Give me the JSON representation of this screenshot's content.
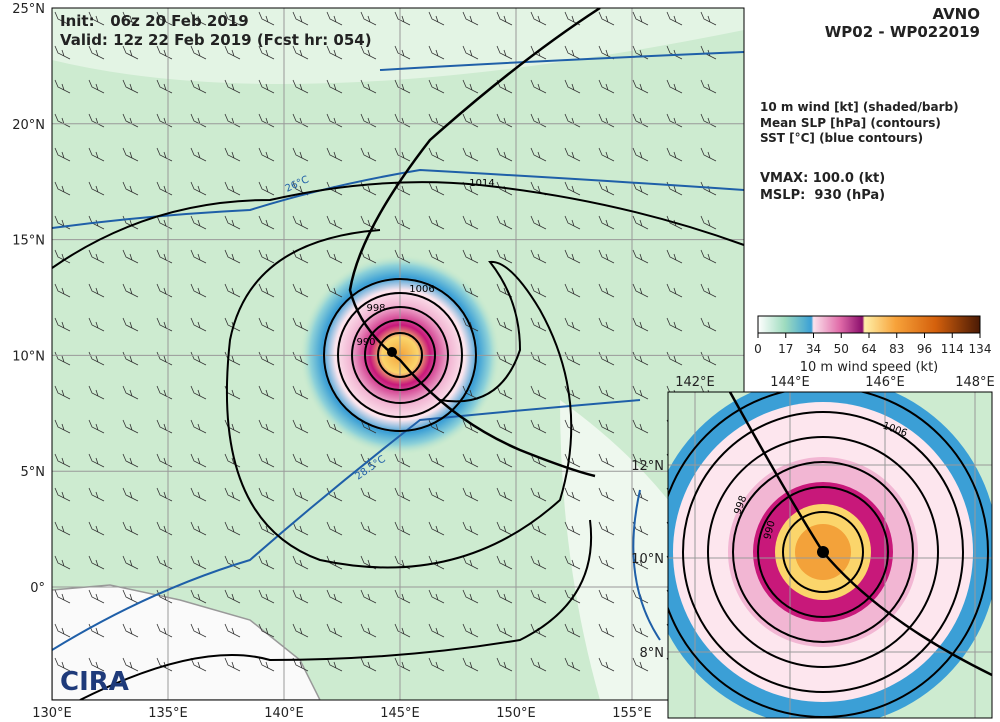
{
  "header": {
    "init": "Init:   06z 20 Feb 2019",
    "valid": "Valid: 12z 22 Feb 2019 (Fcst hr: 054)",
    "model": "AVNO",
    "storm": "WP02 - WP022019"
  },
  "legend": {
    "lines": [
      "10 m wind [kt] (shaded/barb)",
      "Mean SLP [hPa] (contours)",
      "SST [°C] (blue contours)"
    ],
    "vmax": "VMAX: 100.0 (kt)",
    "mslp": "MSLP:  930 (hPa)"
  },
  "colorbar": {
    "ticks": [
      "0",
      "17",
      "34",
      "50",
      "64",
      "83",
      "96",
      "114",
      "134"
    ],
    "label": "10 m wind speed (kt)"
  },
  "map": {
    "lat_labels": [
      "25°N",
      "20°N",
      "15°N",
      "10°N",
      "5°N",
      "0°"
    ],
    "lon_labels": [
      "130°E",
      "135°E",
      "140°E",
      "145°E",
      "150°E",
      "155°E"
    ],
    "contour_labels": [
      "1014",
      "1006",
      "998",
      "990"
    ],
    "sst_labels": [
      "26°C",
      "28.5°C"
    ],
    "logo": "CIRA"
  },
  "inset": {
    "lon_labels": [
      "142°E",
      "144°E",
      "146°E",
      "148°E"
    ],
    "lat_labels": [
      "12°N",
      "10°N",
      "8°N"
    ],
    "contour_labels": [
      "1006",
      "998",
      "990"
    ]
  }
}
